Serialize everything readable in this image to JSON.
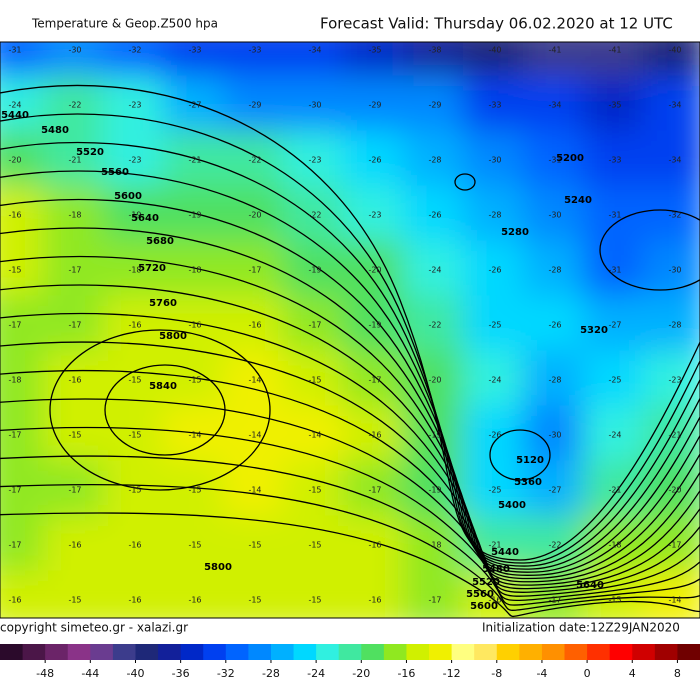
{
  "header": {
    "title": "Temperature & Geop.Z500 hpa",
    "forecast": "Forecast Valid:  Thursday 06.02.2020 at 12 UTC"
  },
  "footer": {
    "copyright": "copyright simeteo.gr - xalazi.gr",
    "init": "Initialization date:12Z29JAN2020"
  },
  "temperature_grid": [
    [
      -31,
      -30,
      -32,
      -33,
      -33,
      -34,
      -35,
      -38,
      -40,
      -41,
      -41,
      -40
    ],
    [
      -24,
      -22,
      -23,
      -27,
      -29,
      -30,
      -29,
      -29,
      -33,
      -34,
      -35,
      -34
    ],
    [
      -20,
      -21,
      -23,
      -21,
      -22,
      -23,
      -26,
      -28,
      -30,
      -31,
      -33,
      -34
    ],
    [
      -16,
      -18,
      -19,
      -19,
      -20,
      -22,
      -23,
      -26,
      -28,
      -30,
      -31,
      -32
    ],
    [
      -15,
      -17,
      -18,
      -18,
      -17,
      -19,
      -20,
      -24,
      -26,
      -28,
      -31,
      -30
    ],
    [
      -17,
      -17,
      -16,
      -16,
      -16,
      -17,
      -19,
      -22,
      -25,
      -26,
      -27,
      -28
    ],
    [
      -18,
      -16,
      -15,
      -15,
      -14,
      -15,
      -17,
      -20,
      -24,
      -28,
      -25,
      -23
    ],
    [
      -17,
      -15,
      -15,
      -14,
      -14,
      -14,
      -16,
      -19,
      -26,
      -30,
      -24,
      -21
    ],
    [
      -17,
      -17,
      -15,
      -15,
      -14,
      -15,
      -17,
      -19,
      -25,
      -27,
      -21,
      -20
    ],
    [
      -17,
      -16,
      -16,
      -15,
      -15,
      -15,
      -16,
      -18,
      -21,
      -22,
      -18,
      -17
    ],
    [
      -16,
      -15,
      -16,
      -16,
      -15,
      -15,
      -16,
      -17,
      -16,
      -17,
      -15,
      -14
    ]
  ],
  "contour_labels": [
    5440,
    5480,
    5520,
    5560,
    5600,
    5640,
    5680,
    5720,
    5760,
    5800,
    5840,
    5200,
    5240,
    5280,
    5320,
    5120,
    5360,
    5400,
    5440,
    5480,
    5520,
    5560,
    5600,
    5640,
    5800
  ],
  "colorbar": {
    "range": [
      -52,
      10
    ],
    "ticks": [
      -48,
      -44,
      -40,
      -36,
      -32,
      -28,
      -24,
      -20,
      -16,
      -12,
      -8,
      -4,
      0,
      4,
      8
    ],
    "colors": [
      "#2b0a2b",
      "#4b1648",
      "#6b2468",
      "#8a3388",
      "#6a3c90",
      "#3c3c8c",
      "#1e2878",
      "#12209a",
      "#0028c8",
      "#0040f0",
      "#0064ff",
      "#0088ff",
      "#00b0ff",
      "#00d8ff",
      "#30f0e0",
      "#40e8a0",
      "#50e060",
      "#90e820",
      "#d0f000",
      "#f0f000",
      "#ffff80",
      "#ffe860",
      "#ffd000",
      "#ffb000",
      "#ff9000",
      "#ff6000",
      "#ff3000",
      "#ff0000",
      "#d00000",
      "#a00000",
      "#700000"
    ]
  }
}
